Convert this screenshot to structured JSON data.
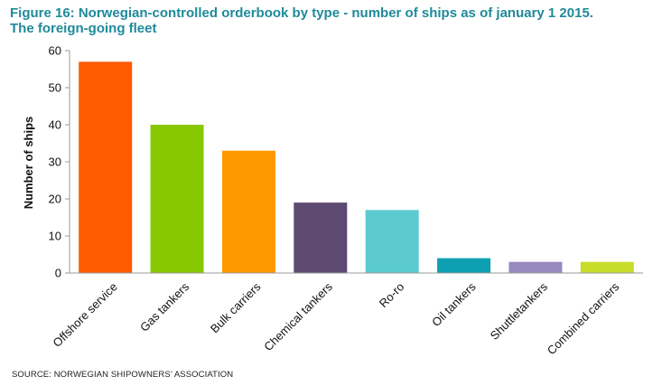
{
  "header": {
    "title_line1": "Figure 16: Norwegian-controlled orderbook by type - number of ships as of january 1 2015.",
    "title_line2": "The foreign-going fleet"
  },
  "footer": {
    "source": "SOURCE: NORWEGIAN SHIPOWNERS’ ASSOCIATION"
  },
  "colors": {
    "title": "#1f8a9a",
    "axis": "#999999"
  },
  "chart_data": {
    "type": "bar",
    "title": "Figure 16: Norwegian-controlled orderbook by type - number of ships as of january 1 2015. The foreign-going fleet",
    "xlabel": "",
    "ylabel": "Number of ships",
    "ylim": [
      0,
      60
    ],
    "yticks": [
      0,
      10,
      20,
      30,
      40,
      50,
      60
    ],
    "grid": false,
    "categories": [
      "Offshore service",
      "Gas tankers",
      "Bulk carriers",
      "Chemical tankers",
      "Ro-ro",
      "Oil tankers",
      "Shuttletankers",
      "Combined carriers"
    ],
    "values": [
      57,
      40,
      33,
      19,
      17,
      4,
      3,
      3
    ],
    "colors": [
      "#ff5a00",
      "#88c800",
      "#ff9900",
      "#5c4a72",
      "#5ccbd0",
      "#0f9fb2",
      "#9888c0",
      "#c8dc2a"
    ]
  }
}
